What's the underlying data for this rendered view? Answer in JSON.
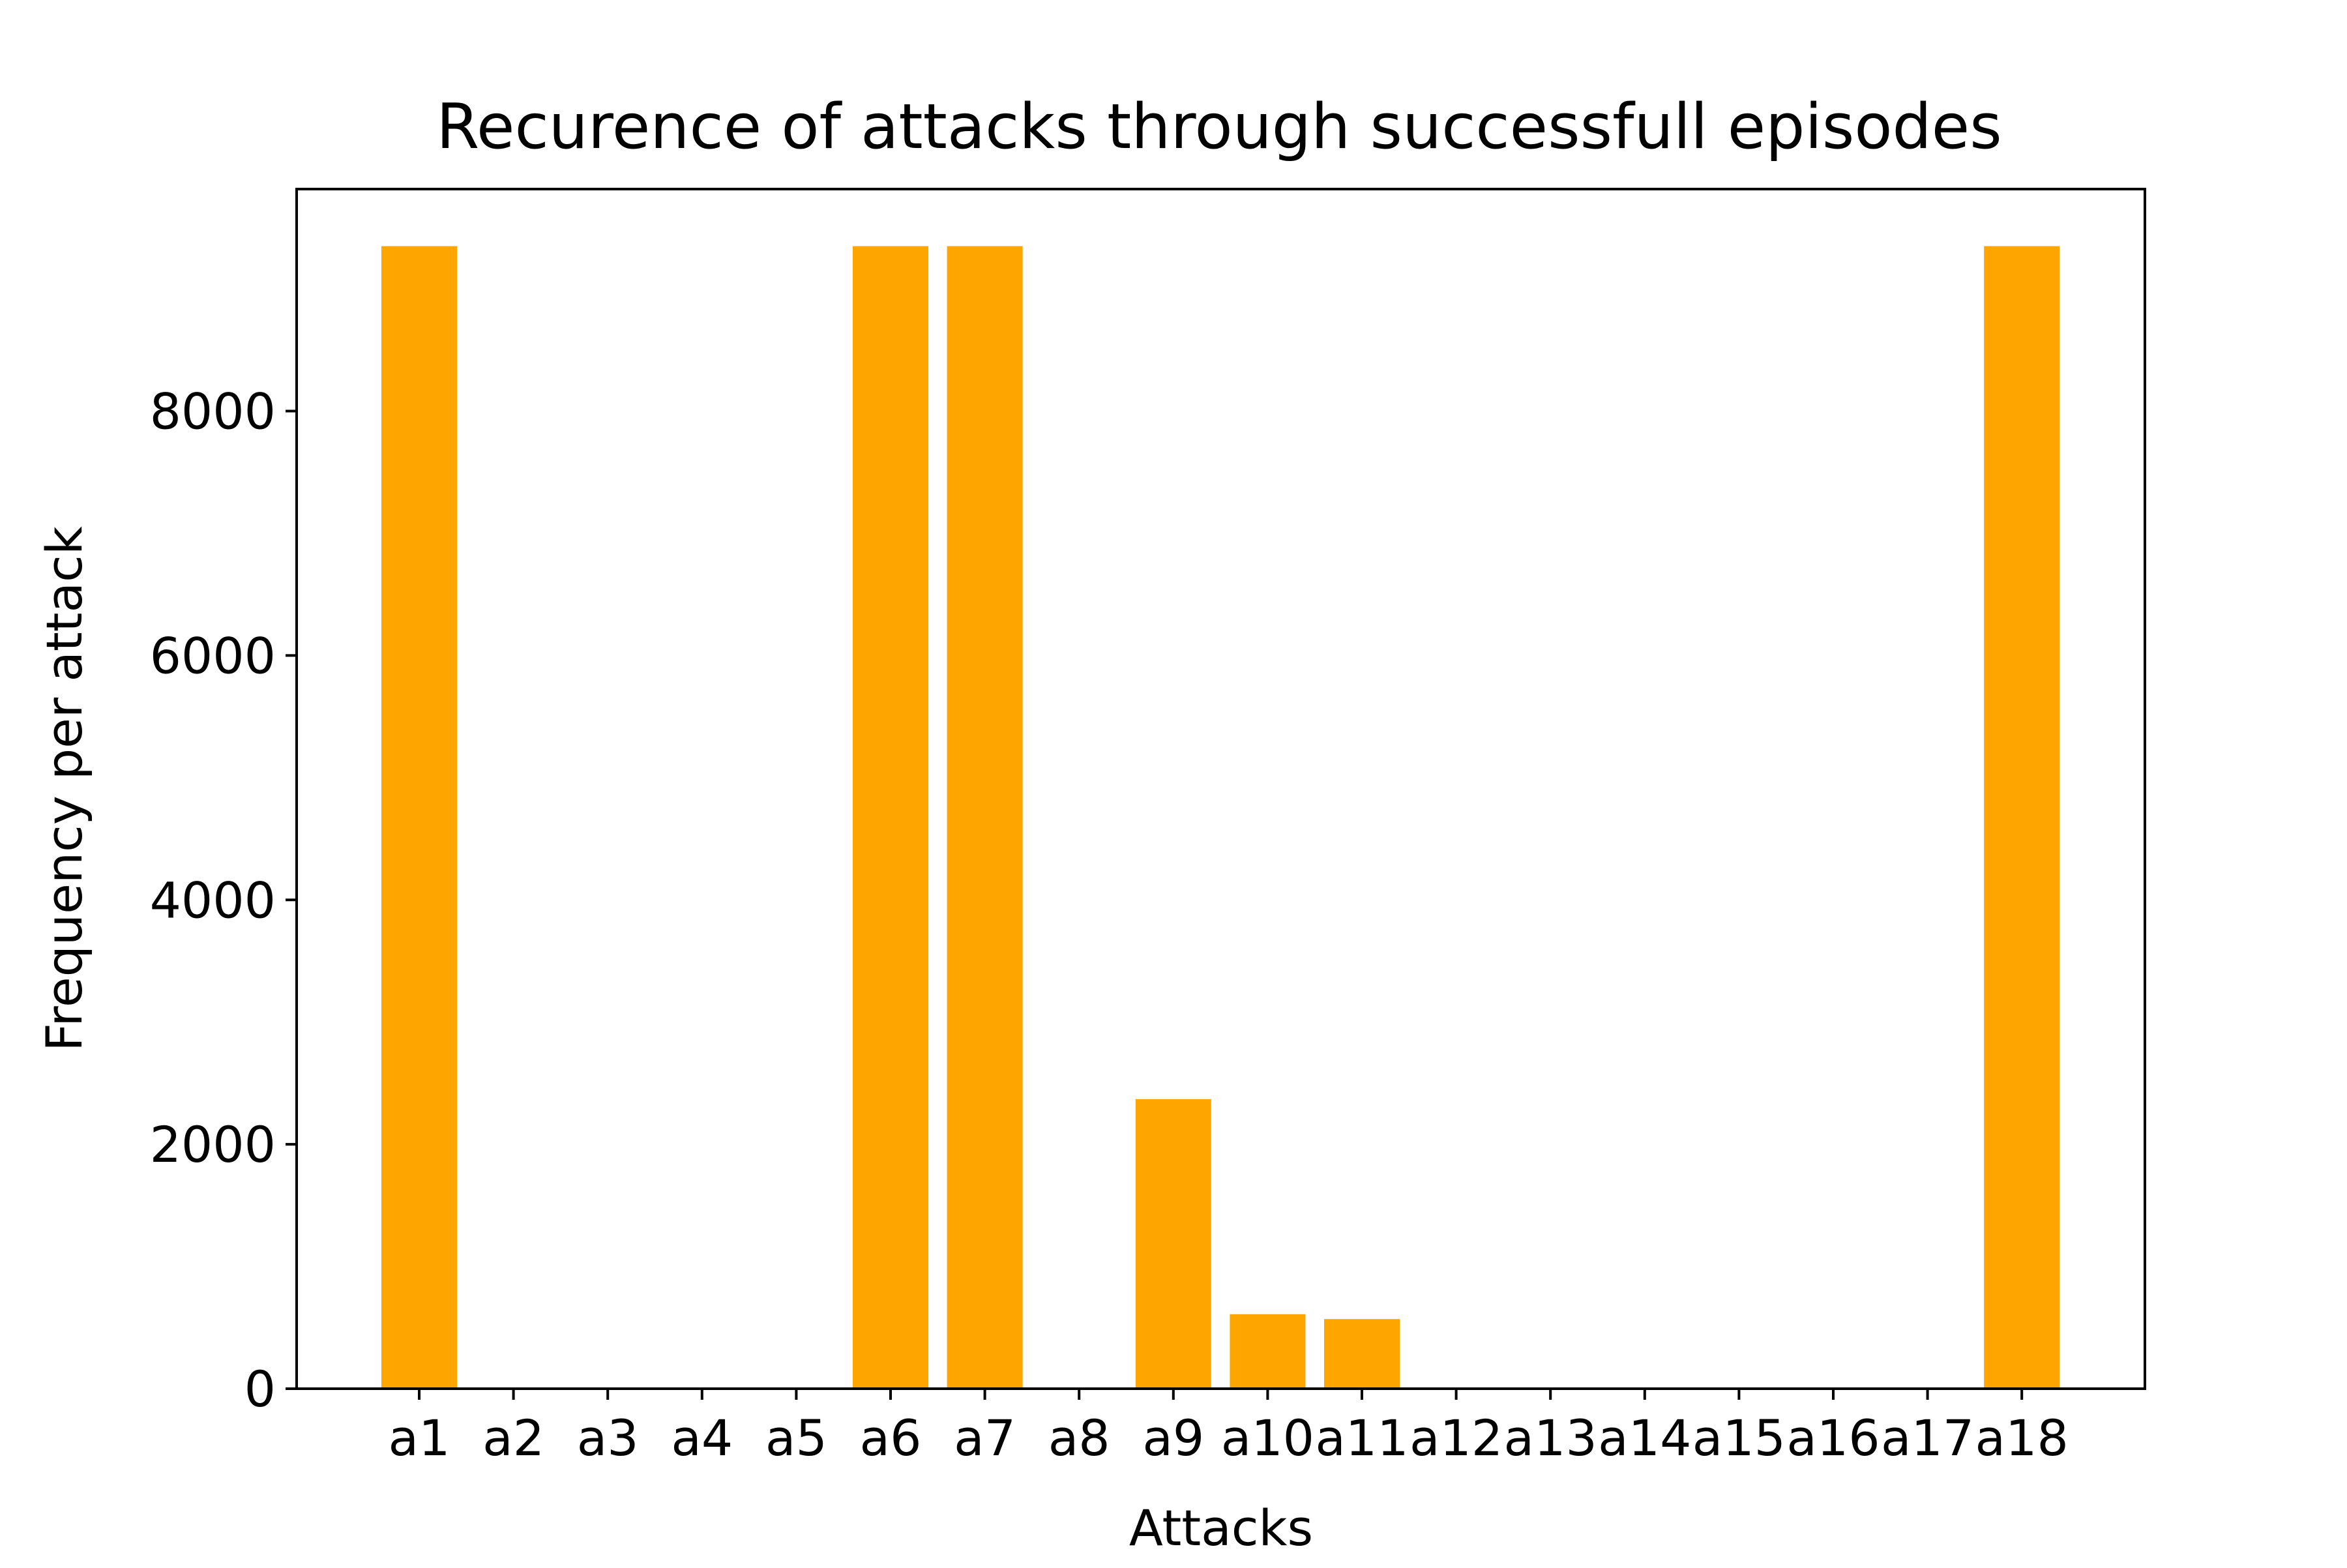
{
  "chart_data": {
    "type": "bar",
    "title": "Recurence of attacks through successfull episodes",
    "xlabel": "Attacks",
    "ylabel": "Frequency per attack",
    "categories": [
      "a1",
      "a2",
      "a3",
      "a4",
      "a5",
      "a6",
      "a7",
      "a8",
      "a9",
      "a10",
      "a11",
      "a12",
      "a13",
      "a14",
      "a15",
      "a16",
      "a17",
      "a18"
    ],
    "values": [
      9350,
      0,
      0,
      0,
      0,
      9350,
      9350,
      0,
      2370,
      610,
      570,
      0,
      0,
      0,
      0,
      0,
      0,
      9350
    ],
    "yticks": [
      0,
      2000,
      4000,
      6000,
      8000
    ],
    "ylim": [
      0,
      9817
    ],
    "bar_color": "#ffa500",
    "grid": false,
    "legend": "none"
  }
}
